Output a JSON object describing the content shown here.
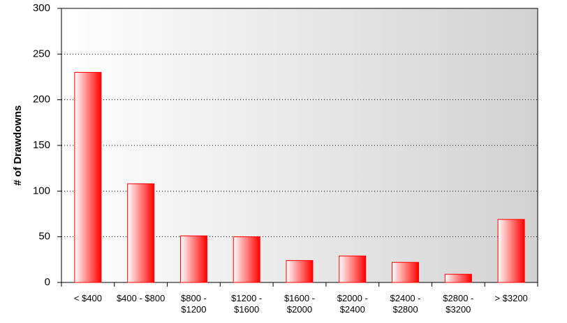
{
  "chart_data": {
    "type": "bar",
    "y_label": "# of Drawdowns",
    "categories": [
      "< $400",
      "$400 - $800",
      "$800 - $1200",
      "$1200 - $1600",
      "$1600 - $2000",
      "$2000 - $2400",
      "$2400 - $2800",
      "$2800 - $3200",
      "> $3200"
    ],
    "values": [
      230,
      108,
      51,
      50,
      24,
      29,
      22,
      9,
      69
    ],
    "color": "#ff0000",
    "ylim": [
      0,
      300
    ],
    "yticks": [
      0,
      50,
      100,
      150,
      200,
      250,
      300
    ],
    "grid": true
  }
}
